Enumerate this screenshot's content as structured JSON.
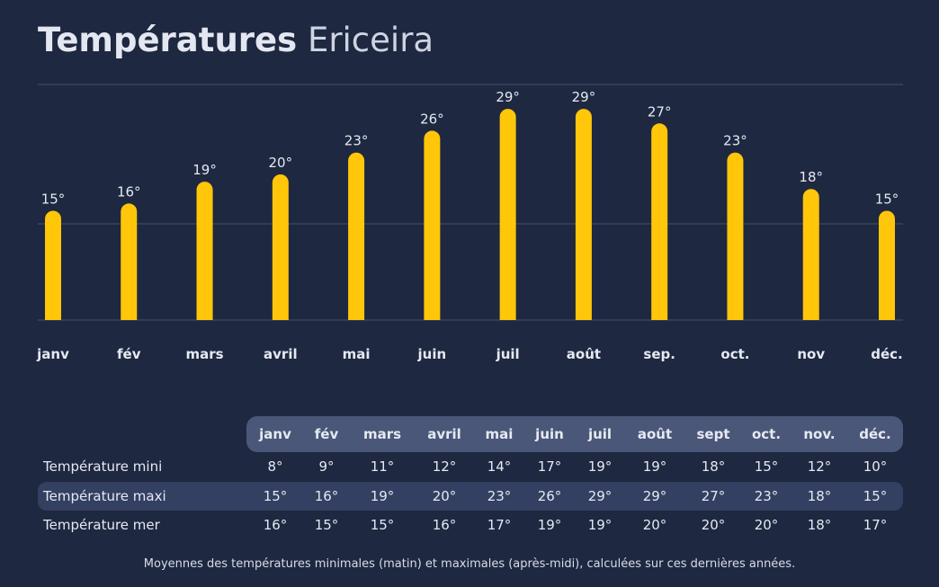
{
  "title": {
    "bold": "Températures",
    "light": "Ericeira"
  },
  "chart_data": {
    "type": "bar",
    "categories": [
      "janv",
      "fév",
      "mars",
      "avril",
      "mai",
      "juin",
      "juil",
      "août",
      "sep.",
      "oct.",
      "nov",
      "déc."
    ],
    "values": [
      15,
      16,
      19,
      20,
      23,
      26,
      29,
      29,
      27,
      23,
      18,
      15
    ],
    "value_suffix": "°",
    "bar_color": "#ffc60a",
    "grid": true
  },
  "table": {
    "headers": [
      "janv",
      "fév",
      "mars",
      "avril",
      "mai",
      "juin",
      "juil",
      "août",
      "sept",
      "oct.",
      "nov.",
      "déc."
    ],
    "rows": [
      {
        "label": "Température mini",
        "values": [
          "8°",
          "9°",
          "11°",
          "12°",
          "14°",
          "17°",
          "19°",
          "19°",
          "18°",
          "15°",
          "12°",
          "10°"
        ]
      },
      {
        "label": "Température maxi",
        "values": [
          "15°",
          "16°",
          "19°",
          "20°",
          "23°",
          "26°",
          "29°",
          "29°",
          "27°",
          "23°",
          "18°",
          "15°"
        ]
      },
      {
        "label": "Température mer",
        "values": [
          "16°",
          "15°",
          "15°",
          "16°",
          "17°",
          "19°",
          "19°",
          "20°",
          "20°",
          "20°",
          "18°",
          "17°"
        ]
      }
    ]
  },
  "footnote": "Moyennes des températures minimales (matin) et maximales (après-midi), calculées sur ces dernières années."
}
